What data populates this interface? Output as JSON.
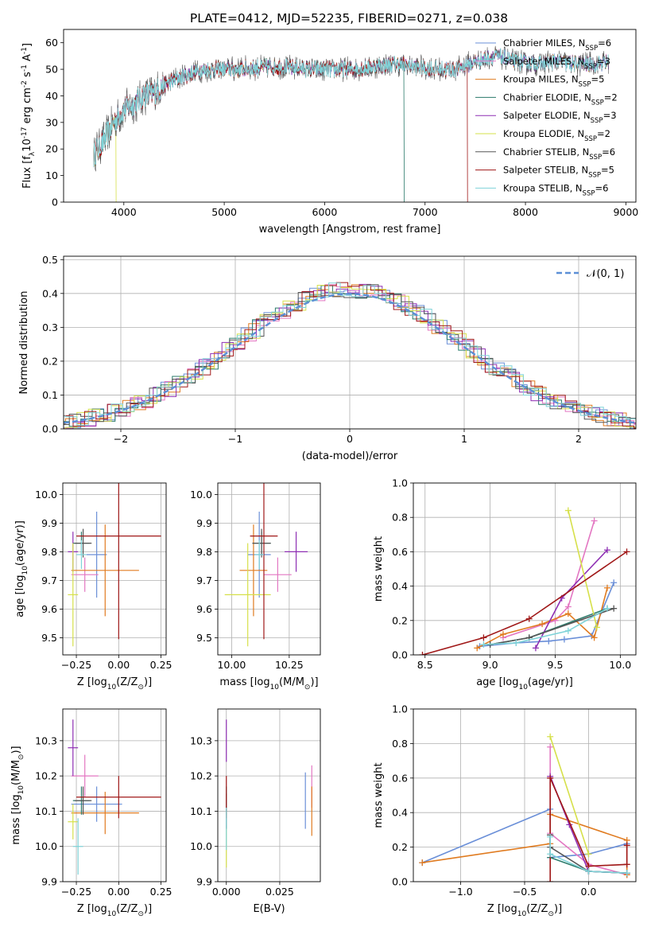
{
  "title": "PLATE=0412, MJD=52235, FIBERID=0271, z=0.038",
  "colors": {
    "Chabrier MILES": "#6a8fd8",
    "Salpeter MILES": "#e377c2",
    "Kroupa MILES": "#e07b20",
    "Chabrier ELODIE": "#2a7a6a",
    "Salpeter ELODIE": "#8e2fb3",
    "Kroupa ELODIE": "#d6e04a",
    "Chabrier STELIB": "#555555",
    "Salpeter STELIB": "#a01818",
    "Kroupa STELIB": "#7fd3d8",
    "normal": "#5b8fd6"
  },
  "chart_data": [
    {
      "id": "spectrum",
      "type": "line",
      "xlabel": "wavelength [Angstrom, rest frame]",
      "ylabel": "Flux [f$_\\lambda$10$^{-17}$ erg cm$^{-2}$ s$^{-1}$ A$^{-1}$]",
      "xlim": [
        3400,
        9100
      ],
      "ylim": [
        0,
        65
      ],
      "xticks": [
        4000,
        5000,
        6000,
        7000,
        8000,
        9000
      ],
      "yticks": [
        0,
        10,
        20,
        30,
        40,
        50,
        60
      ],
      "continuum": [
        [
          3700,
          18
        ],
        [
          3800,
          23
        ],
        [
          3900,
          30
        ],
        [
          4000,
          35
        ],
        [
          4100,
          37
        ],
        [
          4200,
          40
        ],
        [
          4300,
          41
        ],
        [
          4400,
          44
        ],
        [
          4500,
          46
        ],
        [
          4700,
          49
        ],
        [
          4900,
          50
        ],
        [
          5100,
          50
        ],
        [
          5300,
          50.5
        ],
        [
          5500,
          51
        ],
        [
          5700,
          50.5
        ],
        [
          5900,
          50
        ],
        [
          6100,
          50
        ],
        [
          6300,
          50
        ],
        [
          6500,
          51
        ],
        [
          6700,
          52
        ],
        [
          6900,
          51
        ],
        [
          7100,
          50
        ],
        [
          7300,
          50
        ],
        [
          7500,
          53
        ],
        [
          7700,
          55
        ],
        [
          7900,
          53
        ],
        [
          8100,
          52
        ],
        [
          8300,
          53
        ],
        [
          8500,
          52
        ],
        [
          8700,
          52
        ],
        [
          8830,
          53
        ]
      ],
      "legend": [
        {
          "name": "Chabrier MILES",
          "nssp": "6"
        },
        {
          "name": "Salpeter MILES",
          "nssp": "3"
        },
        {
          "name": "Kroupa MILES",
          "nssp": "5"
        },
        {
          "name": "Chabrier ELODIE",
          "nssp": "2"
        },
        {
          "name": "Salpeter ELODIE",
          "nssp": "3"
        },
        {
          "name": "Kroupa ELODIE",
          "nssp": "2"
        },
        {
          "name": "Chabrier STELIB",
          "nssp": "6"
        },
        {
          "name": "Salpeter STELIB",
          "nssp": "5"
        },
        {
          "name": "Kroupa STELIB",
          "nssp": "6"
        }
      ],
      "legend_nssp_label": "N",
      "legend_nssp_sub": "SSP",
      "legend_nssp_eq": "=",
      "legend_placement": "upper right"
    },
    {
      "id": "residuals",
      "type": "histogram",
      "xlabel": "(data-model)/error",
      "ylabel": "Normed distribution",
      "xlim": [
        -2.5,
        2.5
      ],
      "ylim": [
        0,
        0.51
      ],
      "xticks": [
        -2,
        -1,
        0,
        1,
        2
      ],
      "yticks": [
        0.0,
        0.1,
        0.2,
        0.3,
        0.4,
        0.5
      ],
      "bin_width": 0.1,
      "legend": "𝒩(0, 1)",
      "legend_placement": "upper right",
      "grid": true
    },
    {
      "id": "age_vs_Z",
      "type": "errorbar",
      "xlabel": "Z [log$_{10}$(Z/Z$_\\odot$)]",
      "ylabel": "age  [log$_{10}$(age/yr)]",
      "xlim": [
        -0.33,
        0.28
      ],
      "ylim": [
        9.44,
        10.04
      ],
      "xticks": [
        -0.25,
        0.0,
        0.25
      ],
      "yticks": [
        9.5,
        9.6,
        9.7,
        9.8,
        9.9,
        10.0
      ],
      "grid": true,
      "points": [
        {
          "model": "Chabrier MILES",
          "x": -0.13,
          "xerr": 0.06,
          "y": 9.79,
          "yerr": 0.15
        },
        {
          "model": "Salpeter MILES",
          "x": -0.2,
          "xerr": 0.08,
          "y": 9.72,
          "yerr": 0.06
        },
        {
          "model": "Kroupa MILES",
          "x": -0.08,
          "xerr": 0.2,
          "y": 9.735,
          "yerr": 0.16
        },
        {
          "model": "Chabrier ELODIE",
          "x": -0.22,
          "xerr": 0.05,
          "y": 9.83,
          "yerr": 0.04
        },
        {
          "model": "Salpeter ELODIE",
          "x": -0.27,
          "xerr": 0.03,
          "y": 9.8,
          "yerr": 0.07
        },
        {
          "model": "Kroupa ELODIE",
          "x": -0.27,
          "xerr": 0.03,
          "y": 9.65,
          "yerr": 0.18
        },
        {
          "model": "Chabrier STELIB",
          "x": -0.21,
          "xerr": 0.05,
          "y": 9.83,
          "yerr": 0.05
        },
        {
          "model": "Salpeter STELIB",
          "x": 0.0,
          "xerr": 0.25,
          "y": 9.855,
          "yerr": 0.36
        },
        {
          "model": "Kroupa STELIB",
          "x": -0.22,
          "xerr": 0.03,
          "y": 9.79,
          "yerr": 0.05
        }
      ]
    },
    {
      "id": "age_vs_mass",
      "type": "errorbar",
      "xlabel": "mass [log$_{10}$(M/M$_\\odot$)]",
      "ylabel": "",
      "xlim": [
        9.94,
        10.385
      ],
      "ylim": [
        9.44,
        10.04
      ],
      "xticks": [
        10.0,
        10.25
      ],
      "yticks": [
        9.5,
        9.6,
        9.7,
        9.8,
        9.9,
        10.0
      ],
      "grid": true,
      "points": [
        {
          "model": "Chabrier MILES",
          "x": 10.12,
          "xerr": 0.05,
          "y": 9.79,
          "yerr": 0.15
        },
        {
          "model": "Salpeter MILES",
          "x": 10.2,
          "xerr": 0.06,
          "y": 9.72,
          "yerr": 0.06
        },
        {
          "model": "Kroupa MILES",
          "x": 10.095,
          "xerr": 0.06,
          "y": 9.735,
          "yerr": 0.16
        },
        {
          "model": "Chabrier ELODIE",
          "x": 10.13,
          "xerr": 0.04,
          "y": 9.83,
          "yerr": 0.04
        },
        {
          "model": "Salpeter ELODIE",
          "x": 10.28,
          "xerr": 0.05,
          "y": 9.8,
          "yerr": 0.07
        },
        {
          "model": "Kroupa ELODIE",
          "x": 10.07,
          "xerr": 0.1,
          "y": 9.65,
          "yerr": 0.18
        },
        {
          "model": "Chabrier STELIB",
          "x": 10.13,
          "xerr": 0.04,
          "y": 9.83,
          "yerr": 0.05
        },
        {
          "model": "Salpeter STELIB",
          "x": 10.14,
          "xerr": 0.06,
          "y": 9.855,
          "yerr": 0.36
        },
        {
          "model": "Kroupa STELIB",
          "x": 10.12,
          "xerr": 0.02,
          "y": 9.79,
          "yerr": 0.05
        }
      ]
    },
    {
      "id": "weight_vs_age",
      "type": "line",
      "xlabel": "age  [log$_{10}$(age/yr)]",
      "ylabel": "mass weight",
      "xlim": [
        8.41,
        10.12
      ],
      "ylim": [
        0.0,
        1.0
      ],
      "xticks": [
        8.5,
        9.0,
        9.5,
        10.0
      ],
      "yticks": [
        0.0,
        0.2,
        0.4,
        0.6,
        0.8,
        1.0
      ],
      "grid": true,
      "series": [
        {
          "model": "Chabrier MILES",
          "x": [
            8.92,
            9.2,
            9.45,
            9.57,
            9.78,
            9.95
          ],
          "y": [
            0.05,
            0.07,
            0.08,
            0.09,
            0.11,
            0.42
          ]
        },
        {
          "model": "Salpeter MILES",
          "x": [
            9.1,
            9.5,
            9.6,
            9.8
          ],
          "y": [
            0.1,
            0.2,
            0.28,
            0.78
          ]
        },
        {
          "model": "Kroupa MILES",
          "x": [
            8.9,
            9.1,
            9.4,
            9.6,
            9.8,
            9.9
          ],
          "y": [
            0.04,
            0.12,
            0.18,
            0.24,
            0.1,
            0.39
          ]
        },
        {
          "model": "Chabrier ELODIE",
          "x": [
            9.0,
            9.3,
            9.9
          ],
          "y": [
            0.06,
            0.1,
            0.27
          ]
        },
        {
          "model": "Salpeter ELODIE",
          "x": [
            9.35,
            9.55,
            9.9
          ],
          "y": [
            0.04,
            0.33,
            0.61
          ]
        },
        {
          "model": "Kroupa ELODIE",
          "x": [
            9.6,
            9.82
          ],
          "y": [
            0.84,
            0.16
          ]
        },
        {
          "model": "Chabrier STELIB",
          "x": [
            9.0,
            9.3,
            9.95
          ],
          "y": [
            0.06,
            0.1,
            0.27
          ]
        },
        {
          "model": "Salpeter STELIB",
          "x": [
            8.48,
            8.95,
            9.3,
            10.05
          ],
          "y": [
            0.0,
            0.1,
            0.21,
            0.6
          ]
        },
        {
          "model": "Kroupa STELIB",
          "x": [
            8.95,
            9.2,
            9.6,
            9.9
          ],
          "y": [
            0.06,
            0.07,
            0.14,
            0.27
          ]
        }
      ]
    },
    {
      "id": "mass_vs_Z",
      "type": "errorbar",
      "xlabel": "Z [log$_{10}$(Z/Z$_\\odot$)]",
      "ylabel": "mass [log$_{10}$(M/M$_\\odot$)]",
      "xlim": [
        -0.33,
        0.28
      ],
      "ylim": [
        9.9,
        10.39
      ],
      "xticks": [
        -0.25,
        0.0,
        0.25
      ],
      "yticks": [
        9.9,
        10.0,
        10.1,
        10.2,
        10.3
      ],
      "grid": true,
      "points": [
        {
          "model": "Chabrier MILES",
          "x": -0.13,
          "xerr": 0.15,
          "y": 10.12,
          "yerr": 0.05
        },
        {
          "model": "Salpeter MILES",
          "x": -0.2,
          "xerr": 0.08,
          "y": 10.2,
          "yerr": 0.06
        },
        {
          "model": "Kroupa MILES",
          "x": -0.08,
          "xerr": 0.2,
          "y": 10.095,
          "yerr": 0.06
        },
        {
          "model": "Chabrier ELODIE",
          "x": -0.22,
          "xerr": 0.05,
          "y": 10.13,
          "yerr": 0.04
        },
        {
          "model": "Salpeter ELODIE",
          "x": -0.27,
          "xerr": 0.03,
          "y": 10.28,
          "yerr": 0.08
        },
        {
          "model": "Kroupa ELODIE",
          "x": -0.27,
          "xerr": 0.03,
          "y": 10.07,
          "yerr": 0.05
        },
        {
          "model": "Chabrier STELIB",
          "x": -0.21,
          "xerr": 0.05,
          "y": 10.13,
          "yerr": 0.04
        },
        {
          "model": "Salpeter STELIB",
          "x": 0.0,
          "xerr": 0.25,
          "y": 10.14,
          "yerr": 0.06
        },
        {
          "model": "Kroupa STELIB",
          "x": -0.24,
          "xerr": 0.03,
          "y": 10.0,
          "yerr": 0.08
        }
      ]
    },
    {
      "id": "mass_vs_ebv",
      "type": "errorbar",
      "xlabel": "E(B-V)",
      "ylabel": "",
      "xlim": [
        -0.004,
        0.044
      ],
      "ylim": [
        9.9,
        10.39
      ],
      "xticks": [
        0.0,
        0.025
      ],
      "xtick_labels": [
        "0.000",
        "0.025"
      ],
      "yticks": [
        9.9,
        10.0,
        10.1,
        10.2,
        10.3
      ],
      "grid": true,
      "points": [
        {
          "model": "Chabrier MILES",
          "x": 0.037,
          "xerr": 0,
          "y": 10.13,
          "yerr": 0.08
        },
        {
          "model": "Salpeter MILES",
          "x": 0.04,
          "xerr": 0,
          "y": 10.17,
          "yerr": 0.06
        },
        {
          "model": "Kroupa MILES",
          "x": 0.04,
          "xerr": 0,
          "y": 10.1,
          "yerr": 0.07
        },
        {
          "model": "Chabrier ELODIE",
          "x": 0.0,
          "xerr": 0,
          "y": 10.13,
          "yerr": 0.04
        },
        {
          "model": "Salpeter ELODIE",
          "x": 0.0,
          "xerr": 0,
          "y": 10.3,
          "yerr": 0.06
        },
        {
          "model": "Kroupa ELODIE",
          "x": 0.0,
          "xerr": 0,
          "y": 10.0,
          "yerr": 0.06
        },
        {
          "model": "Chabrier STELIB",
          "x": 0.0,
          "xerr": 0,
          "y": 10.1,
          "yerr": 0.05
        },
        {
          "model": "Salpeter STELIB",
          "x": 0.0,
          "xerr": 0,
          "y": 10.14,
          "yerr": 0.06
        },
        {
          "model": "Kroupa STELIB",
          "x": 0.0,
          "xerr": 0,
          "y": 10.05,
          "yerr": 0.06
        }
      ]
    },
    {
      "id": "weight_vs_Z",
      "type": "line",
      "xlabel": "Z [log$_{10}$(Z/Z$_\\odot$)]",
      "ylabel": "mass weight",
      "xlim": [
        -1.37,
        0.37
      ],
      "ylim": [
        0.0,
        1.0
      ],
      "xticks": [
        -1.0,
        -0.5,
        0.0
      ],
      "yticks": [
        0.0,
        0.2,
        0.4,
        0.6,
        0.8,
        1.0
      ],
      "grid": true,
      "series": [
        {
          "model": "Chabrier MILES",
          "x": [
            -1.3,
            -0.3,
            -0.3,
            0.0,
            0.3
          ],
          "y": [
            0.11,
            0.42,
            0.14,
            0.16,
            0.22
          ]
        },
        {
          "model": "Salpeter MILES",
          "x": [
            -0.3,
            -0.3,
            0.0,
            0.3
          ],
          "y": [
            0.78,
            0.28,
            0.1,
            0.04
          ]
        },
        {
          "model": "Kroupa MILES",
          "x": [
            -1.3,
            -0.3,
            -0.3,
            0.3,
            0.3
          ],
          "y": [
            0.11,
            0.22,
            0.39,
            0.24,
            0.04
          ]
        },
        {
          "model": "Chabrier ELODIE",
          "x": [
            -0.3,
            -0.3,
            0.0,
            0.3
          ],
          "y": [
            0.27,
            0.14,
            0.06,
            0.05
          ]
        },
        {
          "model": "Salpeter ELODIE",
          "x": [
            -0.3,
            -0.15,
            0.0,
            0.3
          ],
          "y": [
            0.61,
            0.33,
            0.06,
            0.05
          ]
        },
        {
          "model": "Kroupa ELODIE",
          "x": [
            -0.3,
            0.0
          ],
          "y": [
            0.84,
            0.16
          ]
        },
        {
          "model": "Chabrier STELIB",
          "x": [
            -0.3,
            -0.3,
            0.0,
            0.3
          ],
          "y": [
            0.27,
            0.2,
            0.06,
            0.05
          ]
        },
        {
          "model": "Salpeter STELIB",
          "x": [
            -0.3,
            -0.3,
            0.0,
            0.3,
            0.3
          ],
          "y": [
            0.0,
            0.6,
            0.09,
            0.1,
            0.21
          ]
        },
        {
          "model": "Kroupa STELIB",
          "x": [
            -0.3,
            -0.3,
            0.0,
            0.3
          ],
          "y": [
            0.26,
            0.16,
            0.06,
            0.05
          ]
        }
      ]
    }
  ]
}
